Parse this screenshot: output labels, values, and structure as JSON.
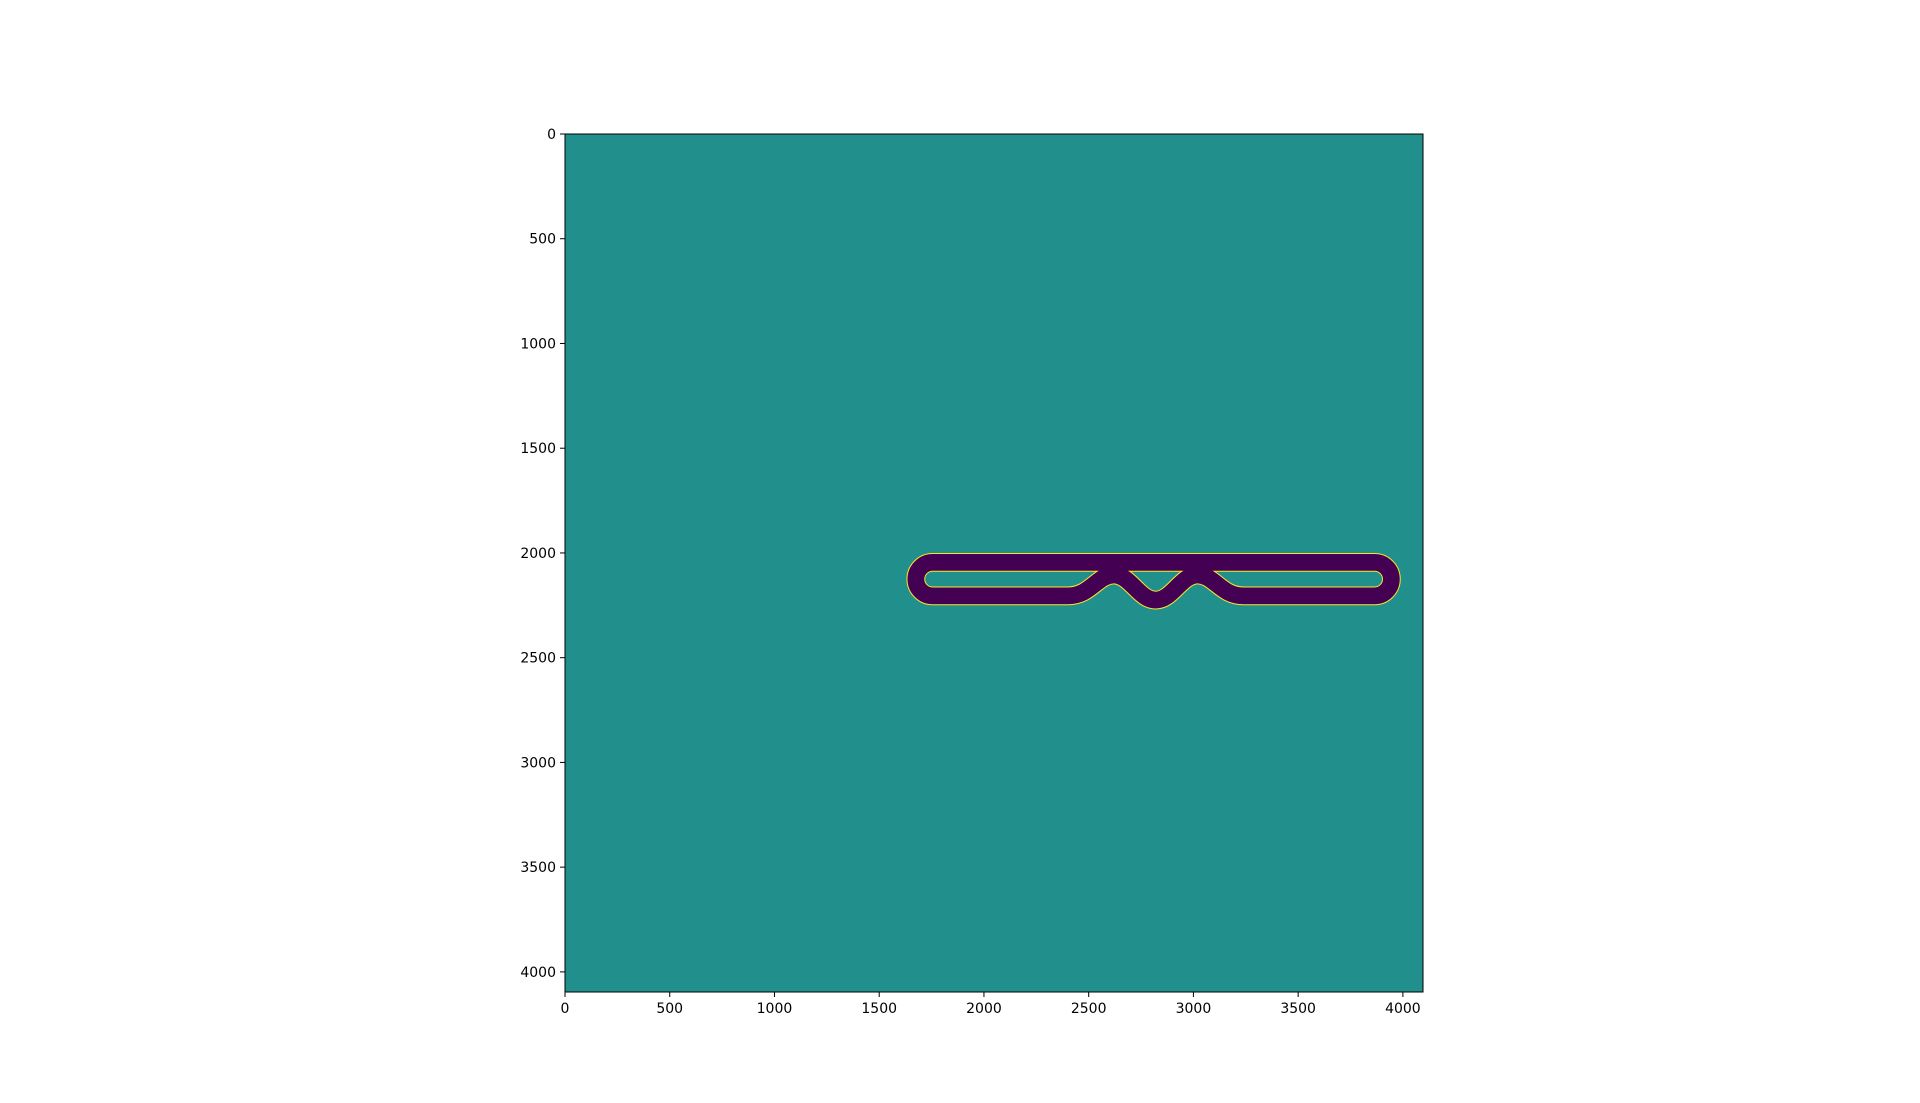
{
  "chart_data": {
    "type": "heatmap",
    "title": "",
    "xlabel": "",
    "ylabel": "",
    "xlim": [
      0,
      4096
    ],
    "ylim": [
      4096,
      0
    ],
    "y_axis_inverted": true,
    "grid": false,
    "legend": "none",
    "x_ticks": [
      {
        "value": 0,
        "label": "0"
      },
      {
        "value": 500,
        "label": "500"
      },
      {
        "value": 1000,
        "label": "1000"
      },
      {
        "value": 1500,
        "label": "1500"
      },
      {
        "value": 2000,
        "label": "2000"
      },
      {
        "value": 2500,
        "label": "2500"
      },
      {
        "value": 3000,
        "label": "3000"
      },
      {
        "value": 3500,
        "label": "3500"
      },
      {
        "value": 4000,
        "label": "4000"
      }
    ],
    "y_ticks": [
      {
        "value": 0,
        "label": "0"
      },
      {
        "value": 500,
        "label": "500"
      },
      {
        "value": 1000,
        "label": "1000"
      },
      {
        "value": 1500,
        "label": "1500"
      },
      {
        "value": 2000,
        "label": "2000"
      },
      {
        "value": 2500,
        "label": "2500"
      },
      {
        "value": 3000,
        "label": "3000"
      },
      {
        "value": 3500,
        "label": "3500"
      },
      {
        "value": 4000,
        "label": "4000"
      }
    ],
    "colors": {
      "background": "#21908d",
      "track": "#440154",
      "edge": "#fde725"
    },
    "track": {
      "x_range": [
        1635,
        3985
      ],
      "y_range": [
        2005,
        2245
      ],
      "band_width": 80,
      "wiggles": [
        {
          "x": 2620,
          "y": 2105
        },
        {
          "x": 2820,
          "y": 2225
        },
        {
          "x": 3020,
          "y": 2105
        }
      ]
    }
  }
}
